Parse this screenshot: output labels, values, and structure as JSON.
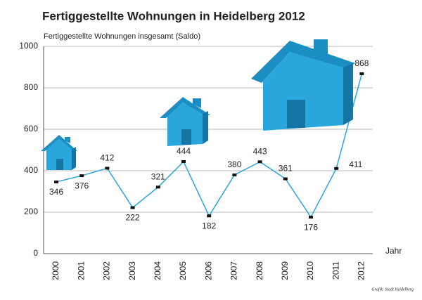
{
  "chart_data": {
    "type": "line",
    "title": "Fertiggestellte Wohnungen in Heidelberg 2012",
    "y_label": "Fertiggestellte Wohnungen insgesamt (Saldo)",
    "x_label": "Jahr",
    "source": "Grafik: Stadt Heidelberg",
    "categories": [
      "2000",
      "2001",
      "2002",
      "2003",
      "2004",
      "2005",
      "2006",
      "2007",
      "2008",
      "2009",
      "2010",
      "2011",
      "2012"
    ],
    "values": [
      346,
      376,
      412,
      222,
      321,
      444,
      182,
      380,
      443,
      361,
      176,
      411,
      868
    ],
    "color": "#29a6dc",
    "ylim": [
      0,
      1000
    ],
    "yticks": [
      0,
      200,
      400,
      600,
      800,
      1000
    ],
    "grid": true
  }
}
